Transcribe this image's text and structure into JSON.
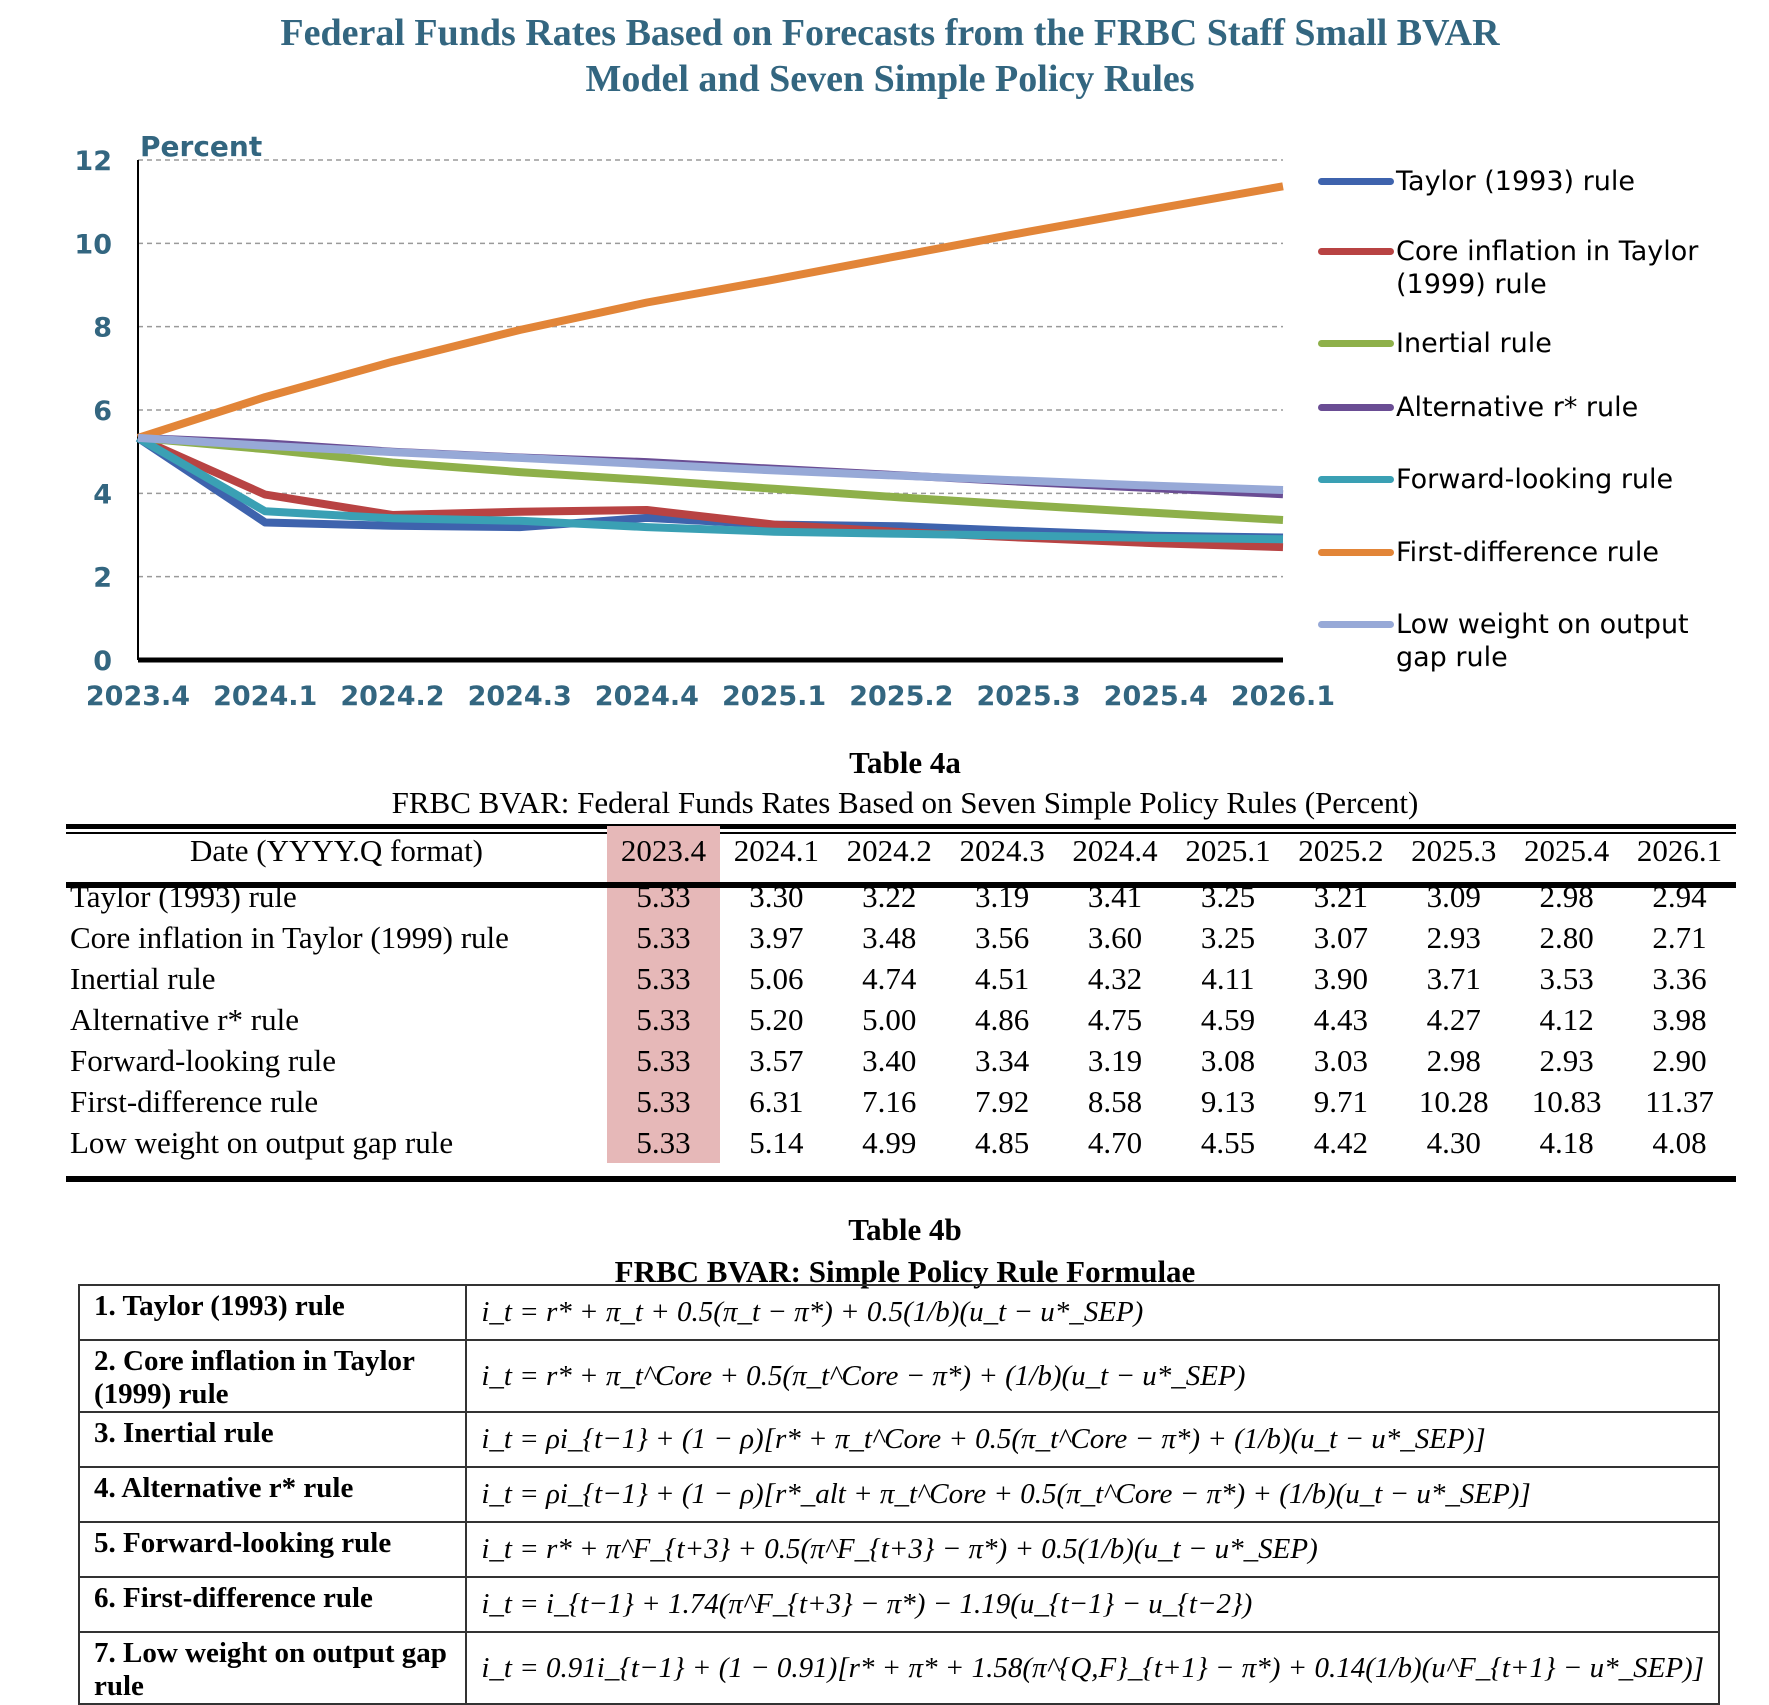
{
  "chart_data": {
    "type": "line",
    "title_lines": [
      "Federal Funds Rates Based on Forecasts from the FRBC Staff Small BVAR",
      "Model and Seven Simple Policy Rules"
    ],
    "ylabel": "Percent",
    "ylim": [
      0,
      12
    ],
    "yticks": [
      0,
      2,
      4,
      6,
      8,
      10,
      12
    ],
    "grid": true,
    "legend_position": "right",
    "categories": [
      "2023.4",
      "2024.1",
      "2024.2",
      "2024.3",
      "2024.4",
      "2025.1",
      "2025.2",
      "2025.3",
      "2025.4",
      "2026.1"
    ],
    "series": [
      {
        "name": "Taylor (1993) rule",
        "color": "#3e63ad",
        "values": [
          5.33,
          3.3,
          3.22,
          3.19,
          3.41,
          3.25,
          3.21,
          3.09,
          2.98,
          2.94
        ]
      },
      {
        "name": "Core inflation in Taylor (1999) rule",
        "color": "#b84343",
        "values": [
          5.33,
          3.97,
          3.48,
          3.56,
          3.6,
          3.25,
          3.07,
          2.93,
          2.8,
          2.71
        ]
      },
      {
        "name": "Inertial rule",
        "color": "#8eb04a",
        "values": [
          5.33,
          5.06,
          4.74,
          4.51,
          4.32,
          4.11,
          3.9,
          3.71,
          3.53,
          3.36
        ]
      },
      {
        "name": "Alternative r* rule",
        "color": "#6a4d94",
        "values": [
          5.33,
          5.2,
          5.0,
          4.86,
          4.75,
          4.59,
          4.43,
          4.27,
          4.12,
          3.98
        ]
      },
      {
        "name": "Forward-looking rule",
        "color": "#3aa0b4",
        "values": [
          5.33,
          3.57,
          3.4,
          3.34,
          3.19,
          3.08,
          3.03,
          2.98,
          2.93,
          2.9
        ]
      },
      {
        "name": "First-difference rule",
        "color": "#e28538",
        "values": [
          5.33,
          6.31,
          7.16,
          7.92,
          8.58,
          9.13,
          9.71,
          10.28,
          10.83,
          11.37
        ]
      },
      {
        "name": "Low weight on output gap rule",
        "color": "#97a9d7",
        "values": [
          5.33,
          5.14,
          4.99,
          4.85,
          4.7,
          4.55,
          4.42,
          4.3,
          4.18,
          4.08
        ]
      }
    ]
  },
  "legend": {
    "labels": [
      [
        "Taylor (1993) rule"
      ],
      [
        "Core inflation in Taylor",
        "(1999) rule"
      ],
      [
        "Inertial rule"
      ],
      [
        "Alternative r* rule"
      ],
      [
        "Forward-looking rule"
      ],
      [
        "First-difference rule"
      ],
      [
        "Low weight on output",
        "gap rule"
      ]
    ]
  },
  "table4a": {
    "heading": "Table 4a",
    "subheading": "FRBC BVAR: Federal Funds Rates Based on Seven Simple Policy Rules (Percent)",
    "header_label": "Date (YYYY.Q format)",
    "columns": [
      "2023.4",
      "2024.1",
      "2024.2",
      "2024.3",
      "2024.4",
      "2025.1",
      "2025.2",
      "2025.3",
      "2025.4",
      "2026.1"
    ],
    "highlight_color": "#e6b8b8",
    "rows": [
      {
        "label": "Taylor (1993) rule",
        "values": [
          "5.33",
          "3.30",
          "3.22",
          "3.19",
          "3.41",
          "3.25",
          "3.21",
          "3.09",
          "2.98",
          "2.94"
        ]
      },
      {
        "label": "Core inflation in Taylor (1999) rule",
        "values": [
          "5.33",
          "3.97",
          "3.48",
          "3.56",
          "3.60",
          "3.25",
          "3.07",
          "2.93",
          "2.80",
          "2.71"
        ]
      },
      {
        "label": "Inertial rule",
        "values": [
          "5.33",
          "5.06",
          "4.74",
          "4.51",
          "4.32",
          "4.11",
          "3.90",
          "3.71",
          "3.53",
          "3.36"
        ]
      },
      {
        "label": "Alternative r* rule",
        "values": [
          "5.33",
          "5.20",
          "5.00",
          "4.86",
          "4.75",
          "4.59",
          "4.43",
          "4.27",
          "4.12",
          "3.98"
        ]
      },
      {
        "label": "Forward-looking rule",
        "values": [
          "5.33",
          "3.57",
          "3.40",
          "3.34",
          "3.19",
          "3.08",
          "3.03",
          "2.98",
          "2.93",
          "2.90"
        ]
      },
      {
        "label": "First-difference rule",
        "values": [
          "5.33",
          "6.31",
          "7.16",
          "7.92",
          "8.58",
          "9.13",
          "9.71",
          "10.28",
          "10.83",
          "11.37"
        ]
      },
      {
        "label": "Low weight on output gap rule",
        "values": [
          "5.33",
          "5.14",
          "4.99",
          "4.85",
          "4.70",
          "4.55",
          "4.42",
          "4.30",
          "4.18",
          "4.08"
        ]
      }
    ]
  },
  "table4b": {
    "heading": "Table 4b",
    "subheading": "FRBC BVAR: Simple Policy Rule Formulae",
    "rows": [
      {
        "name": "1. Taylor (1993) rule",
        "formula": "i_t = r* + π_t + 0.5(π_t − π*) + 0.5(1/b)(u_t − u*_SEP)"
      },
      {
        "name": "2. Core inflation in Taylor (1999) rule",
        "formula": "i_t = r* + π_t^Core + 0.5(π_t^Core − π*) + (1/b)(u_t − u*_SEP)"
      },
      {
        "name": "3. Inertial rule",
        "formula": "i_t = ρi_{t−1} + (1 − ρ)[r* + π_t^Core + 0.5(π_t^Core − π*) + (1/b)(u_t − u*_SEP)]"
      },
      {
        "name": "4. Alternative r* rule",
        "formula": "i_t = ρi_{t−1} + (1 − ρ)[r*_alt + π_t^Core + 0.5(π_t^Core − π*) + (1/b)(u_t − u*_SEP)]"
      },
      {
        "name": "5. Forward-looking rule",
        "formula": "i_t = r* + π^F_{t+3} + 0.5(π^F_{t+3} − π*) + 0.5(1/b)(u_t − u*_SEP)"
      },
      {
        "name": "6. First-difference rule",
        "formula": "i_t = i_{t−1} + 1.74(π^F_{t+3} − π*) − 1.19(u_{t−1} − u_{t−2})"
      },
      {
        "name": "7. Low weight on output gap rule",
        "formula": "i_t = 0.91i_{t−1} + (1 − 0.91)[r* + π* + 1.58(π^{Q,F}_{t+1} − π*) + 0.14(1/b)(u^F_{t+1} − u*_SEP)]"
      }
    ]
  }
}
